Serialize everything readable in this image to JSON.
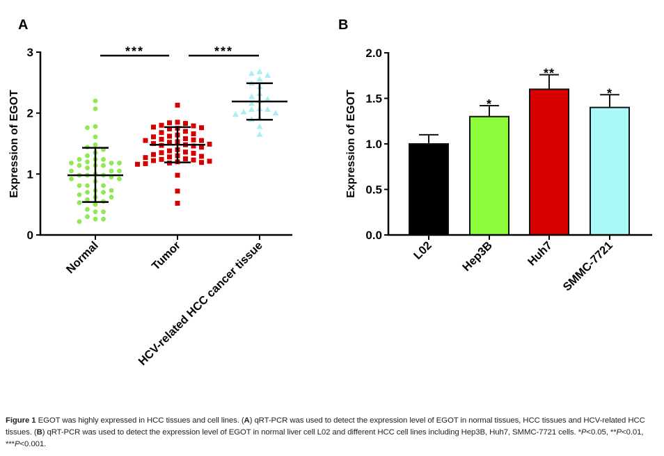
{
  "chart_data": [
    {
      "panel": "A",
      "type": "scatter",
      "title": "",
      "xlabel": "",
      "ylabel": "Expression of EGOT",
      "ylim": [
        0,
        3
      ],
      "yticks": [
        0,
        1,
        2,
        3
      ],
      "categories": [
        "Normal",
        "Tumor",
        "HCV-related HCC cancer tissue"
      ],
      "series": [
        {
          "name": "Normal",
          "marker": "circle",
          "color": "#8fe854",
          "mean": 0.98,
          "sd_low": 0.54,
          "sd_high": 1.43,
          "values": [
            2.2,
            2.07,
            1.78,
            1.76,
            1.61,
            1.48,
            1.44,
            1.4,
            1.35,
            1.3,
            1.24,
            1.24,
            1.24,
            1.2,
            1.18,
            1.18,
            1.18,
            1.14,
            1.14,
            1.14,
            1.1,
            1.05,
            1.05,
            1.05,
            1.0,
            0.98,
            0.98,
            0.98,
            0.95,
            0.92,
            0.92,
            0.88,
            0.81,
            0.81,
            0.81,
            0.73,
            0.73,
            0.7,
            0.7,
            0.66,
            0.62,
            0.62,
            0.58,
            0.55,
            0.53,
            0.5,
            0.42,
            0.38,
            0.38,
            0.3,
            0.26,
            0.26,
            0.22
          ]
        },
        {
          "name": "Tumor",
          "marker": "square",
          "color": "#d40000",
          "mean": 1.48,
          "sd_low": 1.19,
          "sd_high": 1.77,
          "values": [
            2.13,
            1.85,
            1.84,
            1.83,
            1.8,
            1.79,
            1.77,
            1.76,
            1.75,
            1.74,
            1.7,
            1.68,
            1.66,
            1.64,
            1.62,
            1.61,
            1.58,
            1.57,
            1.56,
            1.55,
            1.55,
            1.53,
            1.52,
            1.5,
            1.49,
            1.48,
            1.47,
            1.46,
            1.44,
            1.4,
            1.38,
            1.36,
            1.35,
            1.34,
            1.32,
            1.3,
            1.29,
            1.28,
            1.27,
            1.25,
            1.24,
            1.23,
            1.22,
            1.21,
            1.2,
            1.19,
            1.18,
            1.17,
            1.16,
            0.98,
            0.72,
            0.52
          ]
        },
        {
          "name": "HCV-related HCC cancer tissue",
          "marker": "triangle",
          "color": "#a8eef5",
          "mean": 2.19,
          "sd_low": 1.89,
          "sd_high": 2.49,
          "values": [
            2.68,
            2.65,
            2.62,
            2.56,
            2.49,
            2.43,
            2.32,
            2.27,
            2.23,
            2.2,
            2.16,
            2.07,
            2.06,
            2.06,
            2.02,
            2.0,
            1.98,
            1.92,
            1.9,
            1.78,
            1.65
          ]
        }
      ],
      "significance": [
        {
          "from": "Normal",
          "to": "Tumor",
          "label": "***"
        },
        {
          "from": "Tumor",
          "to": "HCV-related HCC cancer tissue",
          "label": "***"
        }
      ]
    },
    {
      "panel": "B",
      "type": "bar",
      "title": "",
      "xlabel": "",
      "ylabel": "Expression of EGOT",
      "ylim": [
        0,
        2.0
      ],
      "yticks": [
        "0.0",
        "0.5",
        "1.0",
        "1.5",
        "2.0"
      ],
      "categories": [
        "L02",
        "Hep3B",
        "Huh7",
        "SMMC-7721"
      ],
      "values": [
        1.0,
        1.3,
        1.6,
        1.4
      ],
      "error_upper": [
        1.1,
        1.42,
        1.76,
        1.54
      ],
      "colors": [
        "#000000",
        "#8efb3a",
        "#d90000",
        "#aafafa"
      ],
      "significance": [
        "",
        "*",
        "**",
        "*"
      ]
    }
  ],
  "panels": {
    "a_letter": "A",
    "b_letter": "B"
  },
  "caption": {
    "figure_label": "Figure 1",
    "intro": " EGOT was highly expressed in HCC tissues and cell lines. (",
    "a_tag": "A",
    "a_text": ") qRT-PCR was used to detect the expression level of EGOT in normal tissues, HCC tissues and HCV-related HCC tissues. (",
    "b_tag": "B",
    "b_text": ") qRT-PCR was used to detect the expression level of EGOT in normal liver cell L02 and different HCC cell lines including Hep3B, Huh7, SMMC-7721 cells. ",
    "p1_stars": "*",
    "p1": "P",
    "p1_rest": "<0.05, ",
    "p2_stars": "**",
    "p2": "P",
    "p2_rest": "<0.01, ",
    "p3_stars": "***",
    "p3": "P",
    "p3_rest": "<0.001."
  }
}
